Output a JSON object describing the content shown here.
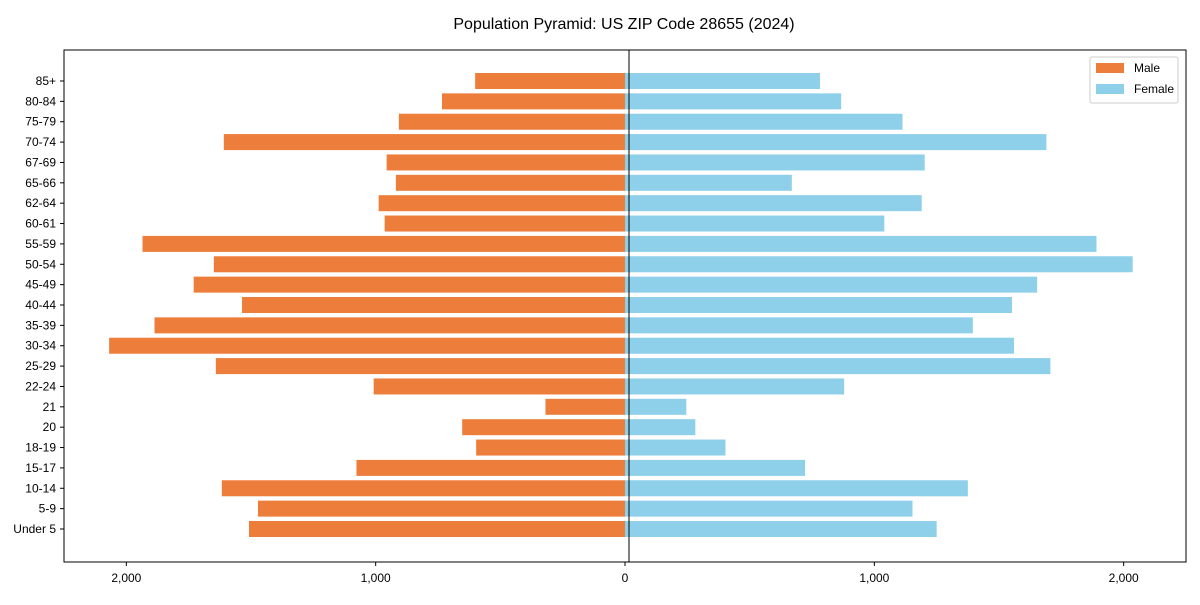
{
  "chart_data": {
    "type": "bar",
    "orientation": "horizontal",
    "title": "Population Pyramid: US ZIP Code 28655 (2024)",
    "xlabel": "",
    "ylabel": "",
    "xlim": [
      -2250,
      2250
    ],
    "xticks": [
      -2000,
      -1000,
      0,
      1000,
      2000
    ],
    "xtick_labels": [
      "2,000",
      "1,000",
      "0",
      "1,000",
      "2,000"
    ],
    "legend_position": "top-right",
    "categories": [
      "85+",
      "80-84",
      "75-79",
      "70-74",
      "67-69",
      "65-66",
      "62-64",
      "60-61",
      "55-59",
      "50-54",
      "45-49",
      "40-44",
      "35-39",
      "30-34",
      "25-29",
      "22-24",
      "21",
      "20",
      "18-19",
      "15-17",
      "10-14",
      "5-9",
      "Under 5"
    ],
    "series": [
      {
        "name": "Male",
        "color": "#ED7D3A",
        "values": [
          601,
          734,
          907,
          1609,
          956,
          919,
          988,
          964,
          1935,
          1649,
          1730,
          1536,
          1887,
          2069,
          1641,
          1008,
          319,
          653,
          597,
          1077,
          1617,
          1472,
          1508
        ]
      },
      {
        "name": "Female",
        "color": "#8ECFEA",
        "values": [
          782,
          867,
          1113,
          1690,
          1202,
          669,
          1190,
          1040,
          1891,
          2036,
          1653,
          1552,
          1395,
          1560,
          1706,
          879,
          246,
          282,
          403,
          722,
          1375,
          1153,
          1250
        ]
      }
    ]
  }
}
